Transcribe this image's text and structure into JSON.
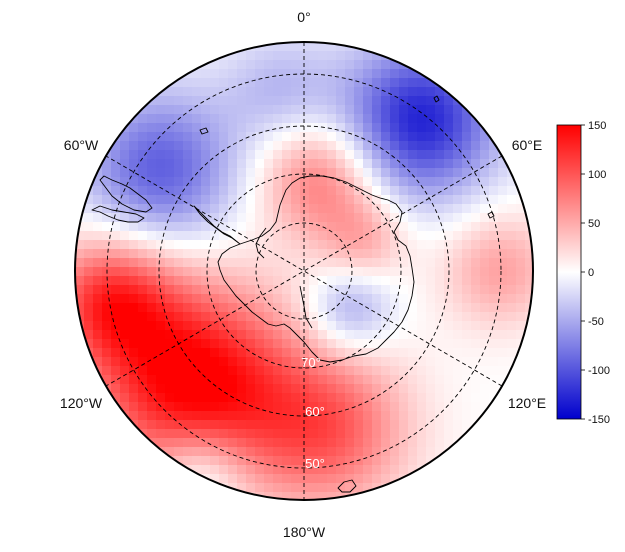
{
  "map": {
    "projection": "south-polar-stereographic",
    "longitude_labels": {
      "top": "0°",
      "upper_right": "60°E",
      "lower_right": "120°E",
      "bottom": "180°W",
      "lower_left": "120°W",
      "upper_left": "60°W"
    },
    "latitude_labels": [
      "70°",
      "60°",
      "50°"
    ],
    "colorbar": {
      "ticks": [
        "150",
        "100",
        "50",
        "0",
        "-50",
        "-100",
        "-150"
      ],
      "min": -150,
      "max": 150,
      "colors": {
        "low": "#0000cc",
        "mid": "#ffffff",
        "high": "#ff0000"
      }
    },
    "colors": {
      "coastline": "#000000",
      "graticule": "#000000",
      "boundary": "#000000"
    }
  }
}
